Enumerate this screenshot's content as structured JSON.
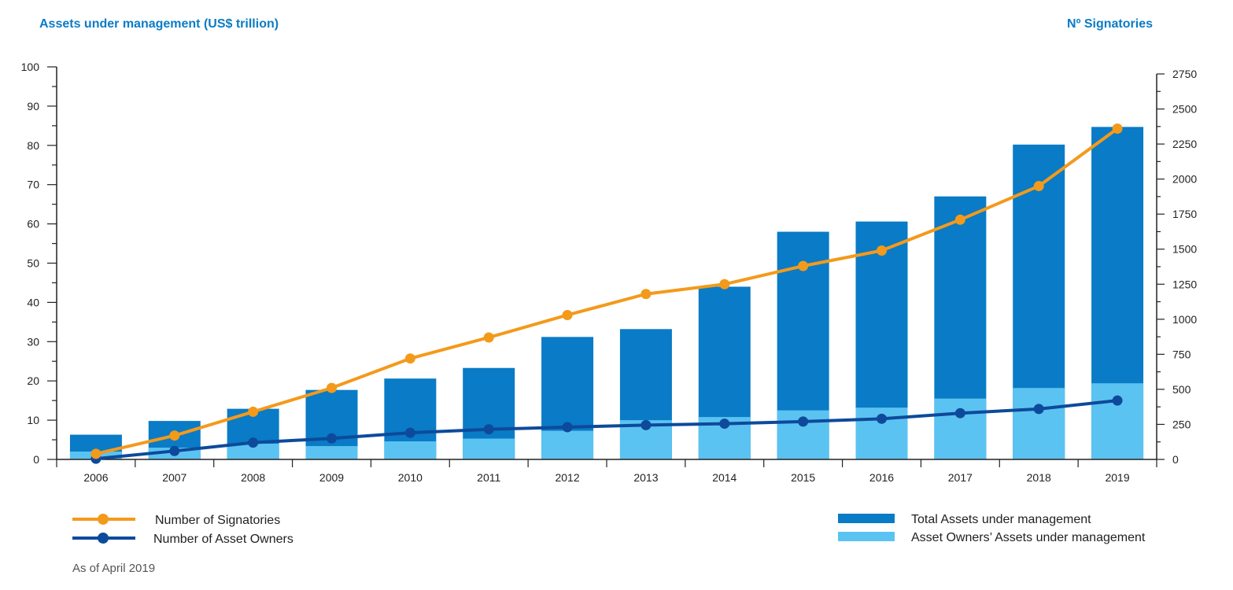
{
  "chart_data": {
    "type": "bar",
    "categories": [
      "2006",
      "2007",
      "2008",
      "2009",
      "2010",
      "2011",
      "2012",
      "2013",
      "2014",
      "2015",
      "2016",
      "2017",
      "2018",
      "2019"
    ],
    "left_axis_label": "Assets under management (US$ trillion)",
    "right_axis_label": "Nº Signatories",
    "ylim_left": [
      0,
      100
    ],
    "yticks_left": [
      0,
      10,
      20,
      30,
      40,
      50,
      60,
      70,
      80,
      90,
      100
    ],
    "ylim_right": [
      0,
      2750
    ],
    "yticks_right": [
      0,
      250,
      500,
      750,
      1000,
      1250,
      1500,
      1750,
      2000,
      2250,
      2500,
      2750
    ],
    "series": [
      {
        "name": "Total Assets under management",
        "kind": "bar",
        "axis": "left",
        "color": "#0a7bc6",
        "values": [
          6.3,
          9.8,
          12.9,
          17.7,
          20.6,
          23.3,
          31.2,
          33.2,
          44.0,
          58.0,
          60.6,
          67.0,
          80.2,
          84.7
        ]
      },
      {
        "name": "Asset Owners’ Assets under management",
        "kind": "bar",
        "axis": "left",
        "color": "#5bc3f1",
        "values": [
          2.0,
          3.0,
          4.0,
          3.4,
          4.6,
          5.3,
          7.3,
          10.0,
          10.8,
          12.5,
          13.2,
          15.5,
          18.2,
          19.4
        ]
      },
      {
        "name": "Number of Signatories",
        "kind": "line",
        "axis": "right",
        "color": "#f39a1b",
        "values": [
          40,
          170,
          340,
          510,
          720,
          870,
          1030,
          1180,
          1250,
          1380,
          1490,
          1710,
          1950,
          2360
        ]
      },
      {
        "name": "Number of Asset Owners",
        "kind": "line",
        "axis": "right",
        "color": "#0d4a9b",
        "values": [
          5,
          60,
          120,
          150,
          190,
          215,
          230,
          245,
          255,
          270,
          290,
          330,
          360,
          420
        ]
      }
    ],
    "legend_left": [
      {
        "label": "Number of Signatories",
        "color": "#f39a1b",
        "marker": "line-dot"
      },
      {
        "label": "Number of Asset Owners",
        "color": "#0d4a9b",
        "marker": "line-dot"
      }
    ],
    "legend_right": [
      {
        "label": "Total Assets under management",
        "color": "#0a7bc6",
        "marker": "bar"
      },
      {
        "label": "Asset Owners’ Assets under management",
        "color": "#5bc3f1",
        "marker": "bar"
      }
    ],
    "note": "As of April 2019",
    "title_color": "#0a7bc6"
  }
}
